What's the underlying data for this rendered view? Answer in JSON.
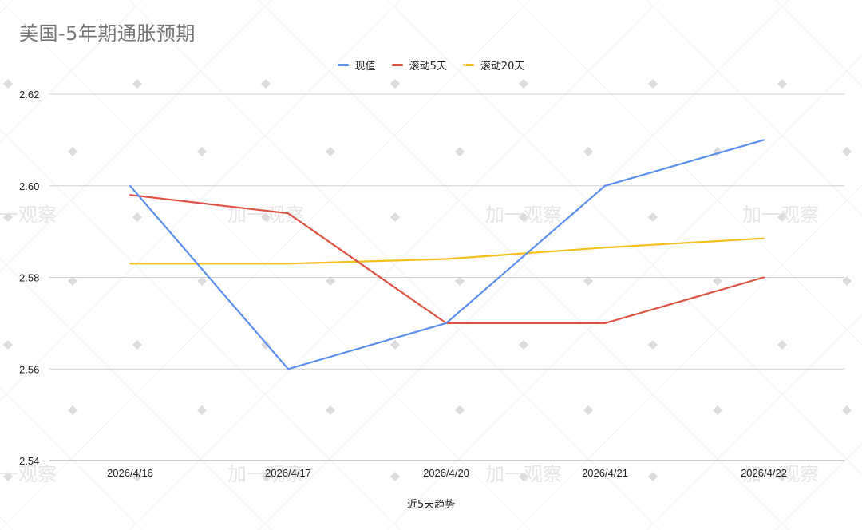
{
  "chart_data": {
    "type": "line",
    "title": "美国-5年期通胀预期",
    "xlabel": "近5天趋势",
    "ylabel": "",
    "categories": [
      "2026/4/16",
      "2026/4/17",
      "2026/4/20",
      "2026/4/21",
      "2026/4/22"
    ],
    "ylim": [
      2.54,
      2.62
    ],
    "yticks": [
      "2.54",
      "2.56",
      "2.58",
      "2.60",
      "2.62"
    ],
    "grid": true,
    "legend_position": "top-center",
    "series": [
      {
        "name": "现值",
        "color": "#5b8ff2",
        "values": [
          2.6,
          2.56,
          2.57,
          2.6,
          2.61
        ]
      },
      {
        "name": "滚动5天",
        "color": "#de5443",
        "values": [
          2.598,
          2.594,
          2.57,
          2.57,
          2.58
        ]
      },
      {
        "name": "滚动20天",
        "color": "#f5bf1d",
        "values": [
          2.583,
          2.583,
          2.584,
          2.5865,
          2.5885
        ]
      }
    ],
    "watermark": "加一观察"
  }
}
